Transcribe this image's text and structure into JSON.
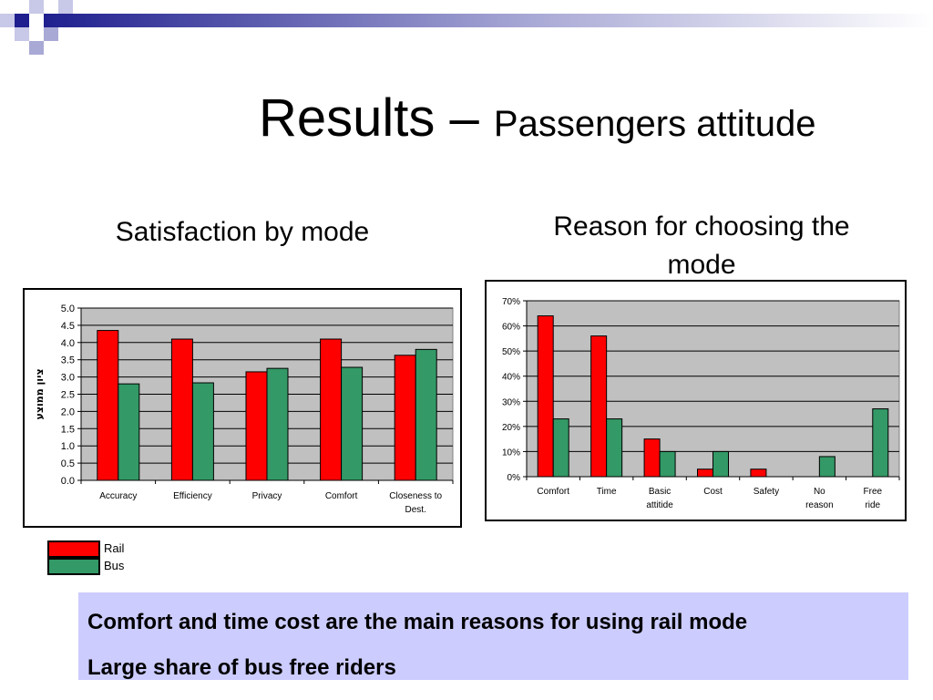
{
  "slide": {
    "title_main": "Results – ",
    "title_sub": "Passengers attitude"
  },
  "headings": {
    "left": "Satisfaction by mode",
    "right": "Reason for choosing the mode"
  },
  "legend": [
    {
      "name": "Rail",
      "color": "#ff0000"
    },
    {
      "name": "Bus",
      "color": "#339966"
    }
  ],
  "summary": [
    "Comfort and time cost are the main reasons for using rail mode",
    "Large share of bus free riders"
  ],
  "chart_data": [
    {
      "type": "bar",
      "categories": [
        "Accuracy",
        "Efficiency",
        "Privacy",
        "Comfort",
        "Closeness to Dest."
      ],
      "series": [
        {
          "name": "Rail",
          "color": "#ff0000",
          "values": [
            4.35,
            4.1,
            3.15,
            4.1,
            3.63
          ]
        },
        {
          "name": "Bus",
          "color": "#339966",
          "values": [
            2.8,
            2.83,
            3.25,
            3.28,
            3.8
          ]
        }
      ],
      "ylabel": "ציון ממוצע",
      "ylim": [
        0,
        5
      ],
      "yticks": [
        "0.0",
        "0.5",
        "1.0",
        "1.5",
        "2.0",
        "2.5",
        "3.0",
        "3.5",
        "4.0",
        "4.5",
        "5.0"
      ],
      "grid": true,
      "plot_background": "#c0c0c0"
    },
    {
      "type": "bar",
      "categories": [
        "Comfort",
        "Time",
        "Basic attitide",
        "Cost",
        "Safety",
        "No reason",
        "Free ride"
      ],
      "series": [
        {
          "name": "Rail",
          "color": "#ff0000",
          "values": [
            0.64,
            0.56,
            0.15,
            0.03,
            0.03,
            0,
            0
          ]
        },
        {
          "name": "Bus",
          "color": "#339966",
          "values": [
            0.23,
            0.23,
            0.1,
            0.1,
            0,
            0.08,
            0.27
          ]
        }
      ],
      "ylim": [
        0,
        0.7
      ],
      "yticks": [
        "0%",
        "10%",
        "20%",
        "30%",
        "40%",
        "50%",
        "60%",
        "70%"
      ],
      "grid": true,
      "plot_background": "#c0c0c0"
    }
  ]
}
